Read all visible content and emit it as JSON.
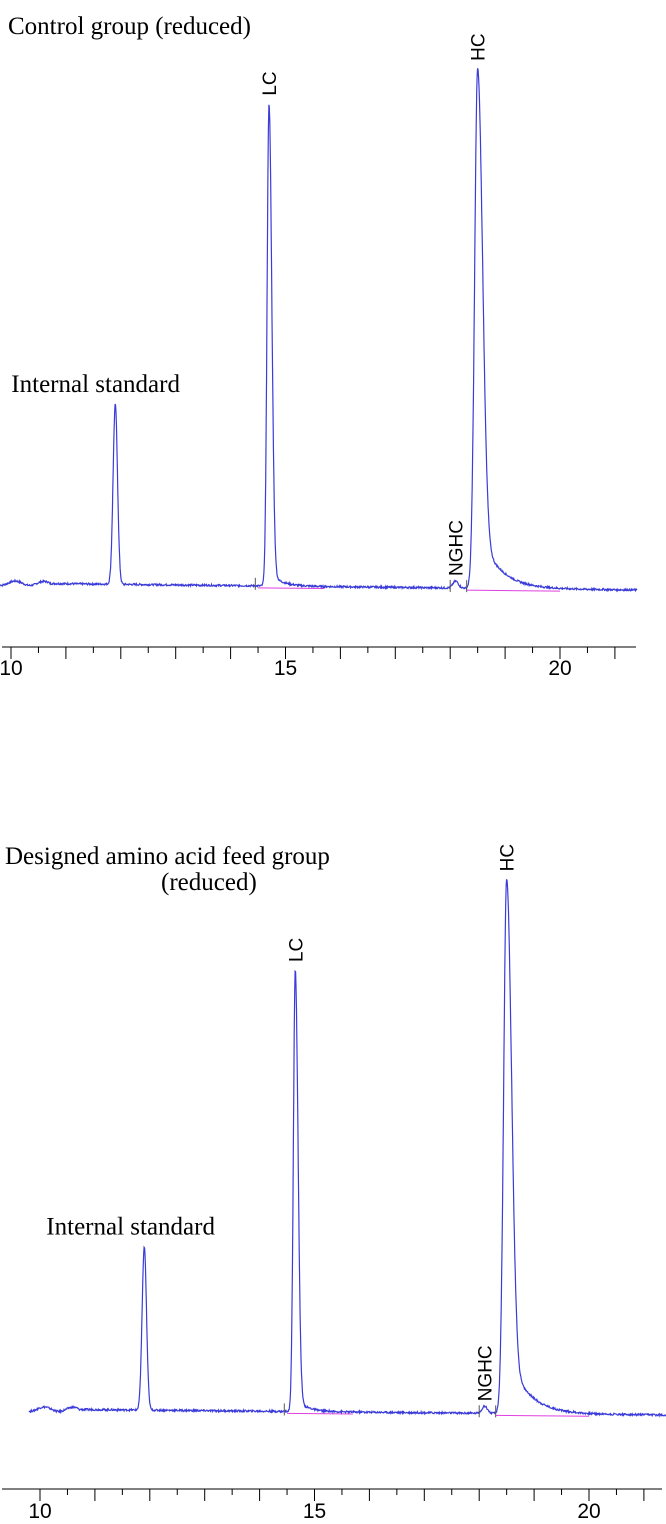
{
  "colors": {
    "trace": "#3b3bd9",
    "baseline": "#e040e0",
    "axis": "#000000"
  },
  "chart_data": [
    {
      "type": "line",
      "title": "Control group (reduced)",
      "xlabel": "",
      "ylabel": "",
      "xlim": [
        9.8,
        21.4
      ],
      "ylim": [
        0,
        100
      ],
      "x_ticks": [
        10,
        15,
        20
      ],
      "grid": false,
      "peaks": [
        {
          "label": "Internal standard",
          "x": 11.9,
          "height": 34
        },
        {
          "label": "LC",
          "x": 14.7,
          "height": 91
        },
        {
          "label": "NGHC",
          "x": 18.1,
          "height": 1.3
        },
        {
          "label": "HC",
          "x": 18.5,
          "height": 98
        }
      ]
    },
    {
      "type": "line",
      "title": "Designed amino acid feed group (reduced)",
      "xlabel": "",
      "ylabel": "",
      "xlim": [
        9.8,
        21.4
      ],
      "ylim": [
        0,
        100
      ],
      "x_ticks": [
        10,
        15,
        20
      ],
      "grid": false,
      "peaks": [
        {
          "label": "Internal standard",
          "x": 11.9,
          "height": 30
        },
        {
          "label": "LC",
          "x": 14.65,
          "height": 81
        },
        {
          "label": "NGHC",
          "x": 18.1,
          "height": 1.3
        },
        {
          "label": "HC",
          "x": 18.5,
          "height": 98
        }
      ]
    }
  ],
  "panels": [
    {
      "title": "Control group (reduced)"
    },
    {
      "title_line1": "Designed amino acid feed group",
      "title_line2": "(reduced)"
    }
  ]
}
